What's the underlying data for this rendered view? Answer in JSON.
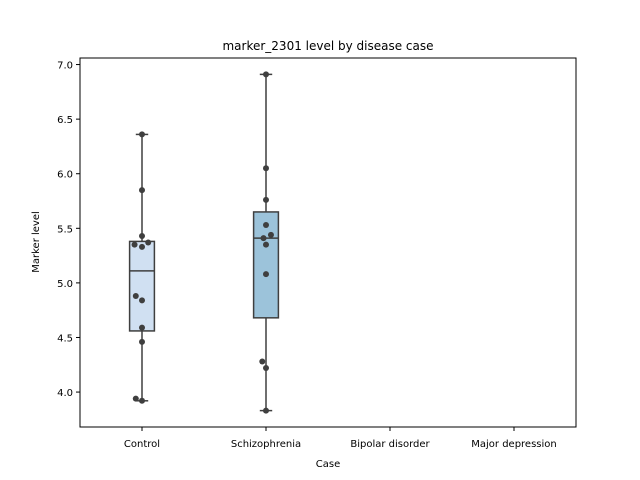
{
  "chart_data": {
    "type": "box",
    "title": "marker_2301 level by disease case",
    "xlabel": "Case",
    "ylabel": "Marker level",
    "categories": [
      "Control",
      "Schizophrenia",
      "Bipolar disorder",
      "Major depression"
    ],
    "ylim": [
      3.68,
      7.06
    ],
    "yticks": [
      4.0,
      4.5,
      5.0,
      5.5,
      6.0,
      6.5,
      7.0
    ],
    "ytick_labels": [
      "4.0",
      "4.5",
      "5.0",
      "5.5",
      "6.0",
      "6.5",
      "7.0"
    ],
    "grid": false,
    "box_colors": [
      "#d0e0f2",
      "#9cc3da"
    ],
    "edge_color": "#3f3f3f",
    "point_color": "#3f3f3f",
    "boxes": [
      {
        "category": "Control",
        "whisker_low": 3.92,
        "q1": 4.56,
        "median": 5.11,
        "q3": 5.38,
        "whisker_high": 6.36,
        "points": [
          {
            "x": 0.0,
            "y": 6.36
          },
          {
            "x": 0.0,
            "y": 5.85
          },
          {
            "x": 0.0,
            "y": 5.43
          },
          {
            "x": -0.06,
            "y": 5.35
          },
          {
            "x": 0.0,
            "y": 5.33
          },
          {
            "x": 0.05,
            "y": 5.37
          },
          {
            "x": -0.05,
            "y": 4.88
          },
          {
            "x": 0.0,
            "y": 4.84
          },
          {
            "x": 0.0,
            "y": 4.59
          },
          {
            "x": 0.0,
            "y": 4.46
          },
          {
            "x": -0.05,
            "y": 3.94
          },
          {
            "x": 0.0,
            "y": 3.92
          }
        ]
      },
      {
        "category": "Schizophrenia",
        "whisker_low": 3.83,
        "q1": 4.68,
        "median": 5.41,
        "q3": 5.65,
        "whisker_high": 6.91,
        "points": [
          {
            "x": 0.0,
            "y": 6.91
          },
          {
            "x": 0.0,
            "y": 6.05
          },
          {
            "x": 0.0,
            "y": 5.76
          },
          {
            "x": 0.0,
            "y": 5.53
          },
          {
            "x": 0.04,
            "y": 5.44
          },
          {
            "x": -0.02,
            "y": 5.41
          },
          {
            "x": 0.0,
            "y": 5.35
          },
          {
            "x": 0.0,
            "y": 5.08
          },
          {
            "x": -0.03,
            "y": 4.28
          },
          {
            "x": 0.0,
            "y": 4.22
          },
          {
            "x": 0.0,
            "y": 3.83
          }
        ]
      }
    ]
  }
}
